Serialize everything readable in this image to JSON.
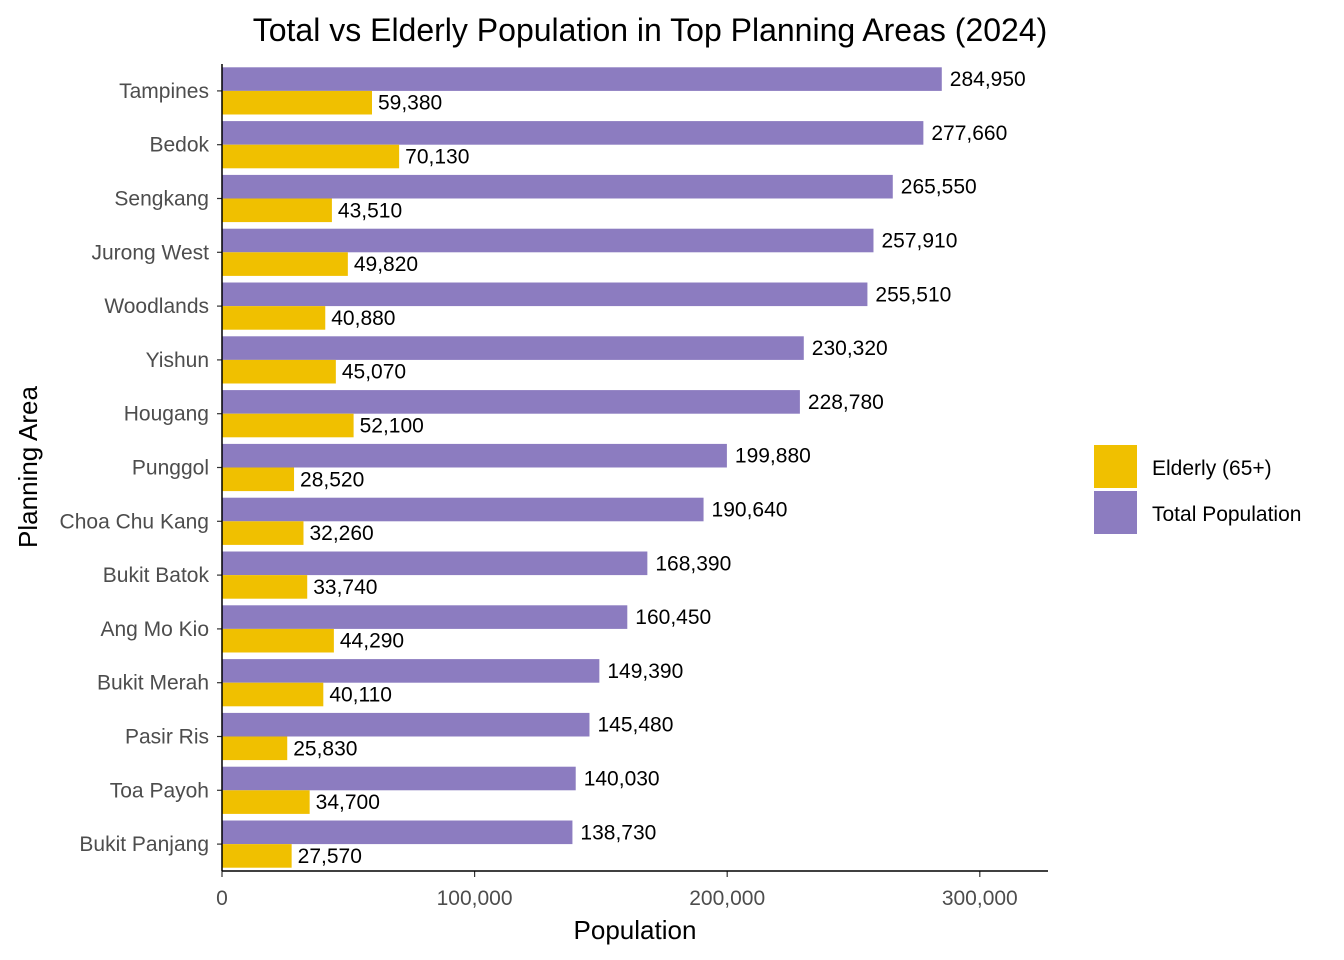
{
  "chart_data": {
    "type": "bar",
    "orientation": "horizontal",
    "title": "Total vs Elderly Population in Top Planning Areas (2024)",
    "xlabel": "Population",
    "ylabel": "Planning Area",
    "xlim": [
      0,
      327000
    ],
    "x_ticks": [
      0,
      100000,
      200000,
      300000
    ],
    "x_tick_labels": [
      "0",
      "100,000",
      "200,000",
      "300,000"
    ],
    "grid": false,
    "legend_position": "right",
    "categories": [
      "Tampines",
      "Bedok",
      "Sengkang",
      "Jurong West",
      "Woodlands",
      "Yishun",
      "Hougang",
      "Punggol",
      "Choa Chu Kang",
      "Bukit Batok",
      "Ang Mo Kio",
      "Bukit Merah",
      "Pasir Ris",
      "Toa Payoh",
      "Bukit Panjang"
    ],
    "series": [
      {
        "name": "Total Population",
        "color": "#8c7cc0",
        "values": [
          284950,
          277660,
          265550,
          257910,
          255510,
          230320,
          228780,
          199880,
          190640,
          168390,
          160450,
          149390,
          145480,
          140030,
          138730
        ],
        "labels": [
          "284,950",
          "277,660",
          "265,550",
          "257,910",
          "255,510",
          "230,320",
          "228,780",
          "199,880",
          "190,640",
          "168,390",
          "160,450",
          "149,390",
          "145,480",
          "140,030",
          "138,730"
        ]
      },
      {
        "name": "Elderly (65+)",
        "color": "#f0c000",
        "values": [
          59380,
          70130,
          43510,
          49820,
          40880,
          45070,
          52100,
          28520,
          32260,
          33740,
          44290,
          40110,
          25830,
          34700,
          27570
        ],
        "labels": [
          "59,380",
          "70,130",
          "43,510",
          "49,820",
          "40,880",
          "45,070",
          "52,100",
          "28,520",
          "32,260",
          "33,740",
          "44,290",
          "40,110",
          "25,830",
          "34,700",
          "27,570"
        ]
      }
    ],
    "legend": [
      {
        "name": "Elderly (65+)",
        "color": "#f0c000"
      },
      {
        "name": "Total Population",
        "color": "#8c7cc0"
      }
    ]
  }
}
